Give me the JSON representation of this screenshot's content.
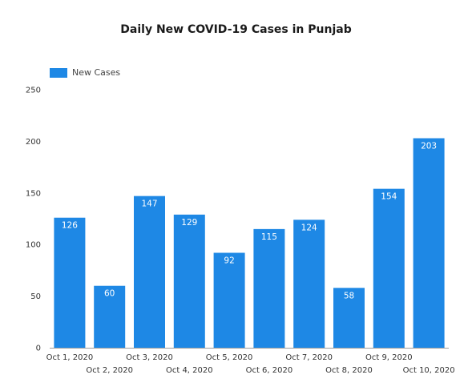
{
  "chart_data": {
    "type": "bar",
    "title": "Daily New COVID-19 Cases in Punjab",
    "categories": [
      "Oct 1, 2020",
      "Oct 2, 2020",
      "Oct 3, 2020",
      "Oct 4, 2020",
      "Oct 5, 2020",
      "Oct 6, 2020",
      "Oct 7, 2020",
      "Oct 8, 2020",
      "Oct 9, 2020",
      "Oct 10, 2020"
    ],
    "series": [
      {
        "name": "New Cases",
        "values": [
          126,
          60,
          147,
          129,
          92,
          115,
          124,
          58,
          154,
          203
        ]
      }
    ],
    "ylim": [
      0,
      250
    ],
    "yticks": [
      0,
      50,
      100,
      150,
      200,
      250
    ],
    "xlabel": "",
    "ylabel": "",
    "legend": "top-left",
    "grid": false,
    "bar_color": "#1e88e5"
  }
}
